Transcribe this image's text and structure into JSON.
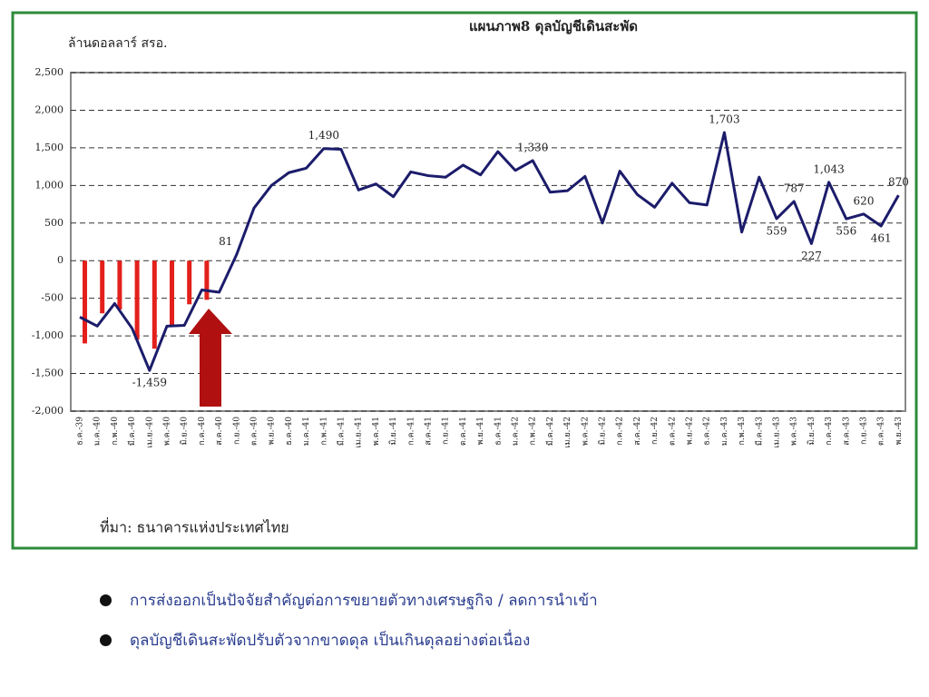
{
  "chart_data": {
    "type": "line",
    "title": "แผนภาพ8 ดุลบัญชีเดินสะพัด",
    "y_label": "ล้านดอลลาร์ สรอ.",
    "source": "ที่มา: ธนาคารแห่งประเทศไทย",
    "categories": [
      "ธ.ค.-39",
      "ม.ค.-40",
      "ก.พ.-40",
      "มี.ค.-40",
      "เม.ย.-40",
      "พ.ค.-40",
      "มิ.ย.-40",
      "ก.ค.-40",
      "ส.ค.-40",
      "ก.ย.-40",
      "ต.ค.-40",
      "พ.ย.-40",
      "ธ.ค.-40",
      "ม.ค.-41",
      "ก.พ.-41",
      "มี.ค.-41",
      "เม.ย.-41",
      "พ.ค.-41",
      "มิ.ย.-41",
      "ก.ค.-41",
      "ส.ค.-41",
      "ก.ย.-41",
      "ต.ค.-41",
      "พ.ย.-41",
      "ธ.ค.-41",
      "ม.ค.-42",
      "ก.พ.-42",
      "มี.ค.-42",
      "เม.ย.-42",
      "พ.ค.-42",
      "มิ.ย.-42",
      "ก.ค.-42",
      "ส.ค.-42",
      "ก.ย.-42",
      "ต.ค.-42",
      "พ.ย.-42",
      "ธ.ค.-42",
      "ม.ค.-43",
      "ก.พ.-43",
      "มี.ค.-43",
      "เม.ย.-43",
      "พ.ค.-43",
      "มิ.ย.-43",
      "ก.ค.-43",
      "ส.ค.-43",
      "ก.ย.-43",
      "ต.ค.-43",
      "พ.ย.-43"
    ],
    "series": [
      {
        "color": "#1c1c6b",
        "values": [
          -750,
          -870,
          -570,
          -900,
          -1459,
          -870,
          -860,
          -390,
          -420,
          81,
          700,
          1000,
          1170,
          1230,
          1490,
          1480,
          940,
          1020,
          850,
          1180,
          1130,
          1110,
          1270,
          1140,
          1450,
          1200,
          1330,
          910,
          930,
          1120,
          500,
          1190,
          880,
          710,
          1030,
          770,
          740,
          1703,
          380,
          1110,
          559,
          787,
          227,
          1043,
          556,
          620,
          461,
          870
        ],
        "value_labels": [
          null,
          null,
          null,
          null,
          "-1,459",
          null,
          null,
          null,
          null,
          "81",
          null,
          null,
          null,
          null,
          "1,490",
          null,
          null,
          null,
          null,
          null,
          null,
          null,
          null,
          null,
          null,
          null,
          "1,330",
          null,
          null,
          null,
          null,
          null,
          null,
          null,
          null,
          null,
          null,
          "1,703",
          null,
          null,
          "559",
          "787",
          "227",
          "1,043",
          "556",
          "620",
          "461",
          "870"
        ]
      },
      {
        "type": "bar",
        "color": "#e3201b",
        "values": [
          -1100,
          -700,
          -650,
          -1050,
          -1170,
          -870,
          -580,
          -520,
          null,
          null,
          null,
          null,
          null,
          null,
          null,
          null,
          null,
          null,
          null,
          null,
          null,
          null,
          null,
          null,
          null,
          null,
          null,
          null,
          null,
          null,
          null,
          null,
          null,
          null,
          null,
          null,
          null,
          null,
          null,
          null,
          null,
          null,
          null,
          null,
          null,
          null,
          null,
          null
        ]
      }
    ],
    "ylim": [
      -2000,
      2500
    ],
    "yticks": [
      {
        "value": 2500,
        "label": "2,500"
      },
      {
        "value": 2000,
        "label": "2,000"
      },
      {
        "value": 1500,
        "label": "1,500"
      },
      {
        "value": 1000,
        "label": "1,000"
      },
      500,
      0,
      -500,
      {
        "value": -1000,
        "label": "-1,000"
      },
      {
        "value": -1500,
        "label": "-1,500"
      },
      {
        "value": -2000,
        "label": "-2,000"
      }
    ],
    "grid": true
  },
  "bullets": [
    "การส่งออกเป็นปัจจัยสำคัญต่อการขยายตัวทางเศรษฐกิจ / ลดการนำเข้า",
    "ดุลบัญชีเดินสะพัดปรับตัวจากขาดดุล เป็นเกินดุลอย่างต่อเนื่อง"
  ]
}
